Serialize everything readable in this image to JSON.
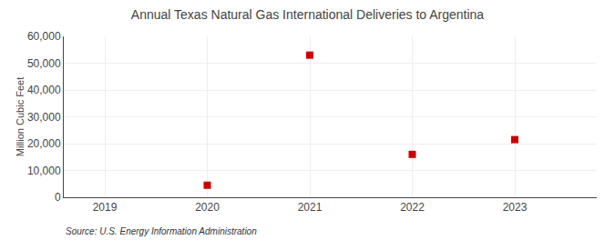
{
  "chart_data": {
    "type": "scatter",
    "title": "Annual Texas Natural Gas International Deliveries to Argentina",
    "y_label": "Million Cubic Feet",
    "annotations": [
      "Source: U.S. Energy Information Administration"
    ],
    "x": [
      2020,
      2021,
      2022,
      2023
    ],
    "values": [
      4500,
      53000,
      16000,
      21500
    ],
    "color": "#cc0000",
    "marker": "square",
    "xlim": [
      2018.6,
      2023.8
    ],
    "xticks": [
      2019,
      2020,
      2021,
      2022,
      2023
    ],
    "ylim": [
      0,
      60000
    ],
    "yticks": [
      0,
      {
        "value": 10000,
        "label": "10,000"
      },
      {
        "value": 20000,
        "label": "20,000"
      },
      {
        "value": 30000,
        "label": "30,000"
      },
      {
        "value": 40000,
        "label": "40,000"
      },
      {
        "value": 50000,
        "label": "50,000"
      },
      {
        "value": 60000,
        "label": "60,000"
      }
    ],
    "grid": true
  }
}
